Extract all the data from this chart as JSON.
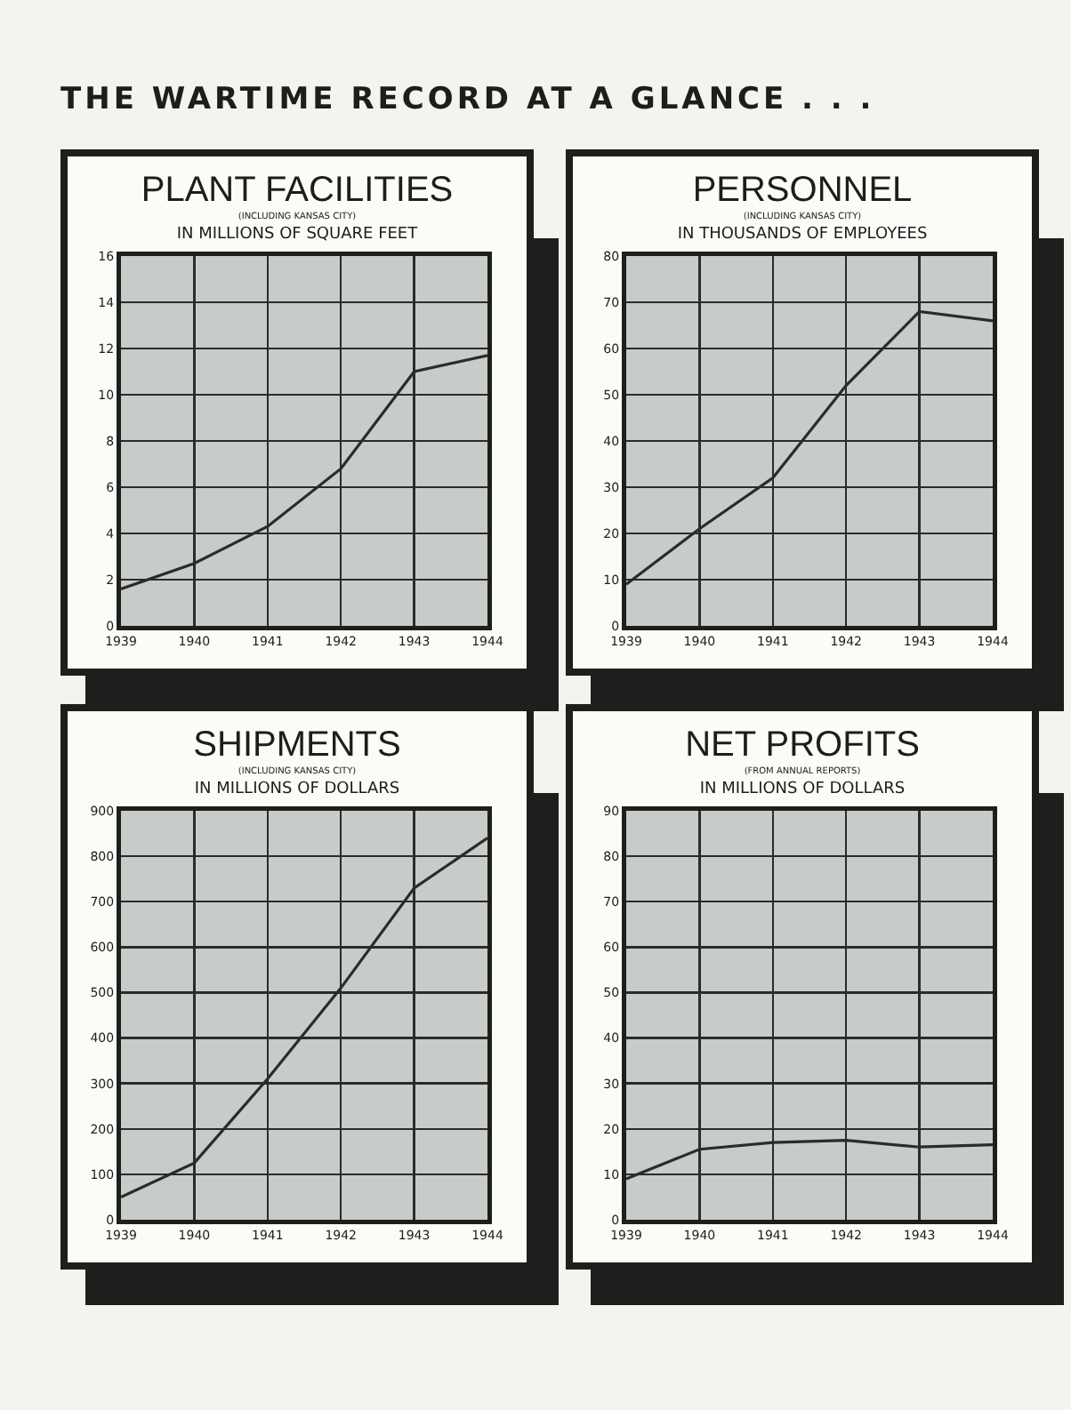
{
  "chart_data": [
    {
      "type": "line",
      "title": "PLANT FACILITIES",
      "subtitle": "(INCLUDING KANSAS CITY)",
      "ylabel": "IN MILLIONS OF SQUARE FEET",
      "annotations": [
        "THE WARTIME RECORD AT A GLANCE . . ."
      ],
      "categories": [
        "1939",
        "1940",
        "1941",
        "1942",
        "1943",
        "1944"
      ],
      "series": [
        {
          "color": "#2a2c2a",
          "values": [
            1.6,
            2.7,
            4.3,
            6.8,
            11,
            11.7
          ]
        }
      ],
      "ylim": [
        0,
        16
      ],
      "yticks": [
        0,
        2,
        4,
        6,
        8,
        10,
        12,
        14,
        16
      ],
      "grid": true,
      "marker": "none",
      "line_style": "solid"
    },
    {
      "type": "line",
      "title": "PERSONNEL",
      "subtitle": "(INCLUDING KANSAS CITY)",
      "ylabel": "IN THOUSANDS OF EMPLOYEES",
      "categories": [
        "1939",
        "1940",
        "1941",
        "1942",
        "1943",
        "1944"
      ],
      "series": [
        {
          "color": "#2a2c2a",
          "values": [
            9,
            21,
            32,
            52,
            68,
            66
          ]
        }
      ],
      "ylim": [
        0,
        80
      ],
      "yticks": [
        0,
        10,
        20,
        30,
        40,
        50,
        60,
        70,
        80
      ],
      "grid": true,
      "marker": "none",
      "line_style": "solid"
    },
    {
      "type": "line",
      "title": "SHIPMENTS",
      "subtitle": "(INCLUDING KANSAS CITY)",
      "ylabel": "IN MILLIONS OF DOLLARS",
      "categories": [
        "1939",
        "1940",
        "1941",
        "1942",
        "1943",
        "1944"
      ],
      "series": [
        {
          "color": "#2a2c2a",
          "values": [
            50,
            125,
            310,
            510,
            730,
            840
          ]
        }
      ],
      "ylim": [
        0,
        900
      ],
      "yticks": [
        0,
        100,
        200,
        300,
        400,
        500,
        600,
        700,
        800,
        900
      ],
      "grid": true,
      "marker": "none",
      "line_style": "solid"
    },
    {
      "type": "line",
      "title": "NET PROFITS",
      "subtitle": "(FROM ANNUAL REPORTS)",
      "ylabel": "IN MILLIONS OF DOLLARS",
      "categories": [
        "1939",
        "1940",
        "1941",
        "1942",
        "1943",
        "1944"
      ],
      "series": [
        {
          "color": "#2a2c2a",
          "values": [
            9,
            15.5,
            17,
            17.5,
            16,
            16.5
          ]
        }
      ],
      "ylim": [
        0,
        90
      ],
      "yticks": [
        0,
        10,
        20,
        30,
        40,
        50,
        60,
        70,
        80,
        90
      ],
      "grid": true,
      "marker": "none",
      "line_style": "solid"
    }
  ]
}
